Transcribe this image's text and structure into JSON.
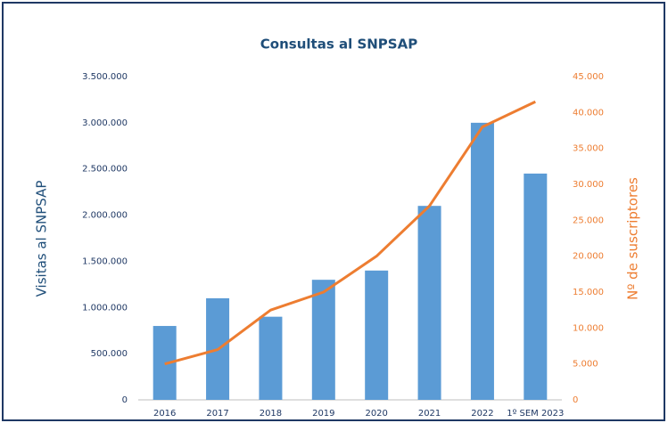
{
  "chart_data": {
    "type": "bar_line",
    "title": "Consultas al SNPSAP",
    "y_label": "Visitas al SNPSAP",
    "y2_label": "Nº de suscriptores",
    "categories": [
      "2016",
      "2017",
      "2018",
      "2019",
      "2020",
      "2021",
      "2022",
      "1º SEM 2023"
    ],
    "series": [
      {
        "name": "Visitas al SNPSAP",
        "type": "bar",
        "color": "#5b9bd5",
        "values": [
          800000,
          1100000,
          900000,
          1300000,
          1400000,
          2100000,
          3000000,
          2450000
        ]
      },
      {
        "name": "Nº de suscriptores",
        "type": "line",
        "axis": "y2",
        "color": "#ed7d31",
        "values": [
          5000,
          7000,
          12500,
          15000,
          20000,
          27000,
          38000,
          41500
        ]
      }
    ],
    "ylim": [
      0,
      3500000
    ],
    "yticks": [
      0,
      {
        "value": 500000,
        "label": "500.000"
      },
      {
        "value": 1000000,
        "label": "1.000.000"
      },
      {
        "value": 1500000,
        "label": "1.500.000"
      },
      {
        "value": 2000000,
        "label": "2.000.000"
      },
      {
        "value": 2500000,
        "label": "2.500.000"
      },
      {
        "value": 3000000,
        "label": "3.000.000"
      },
      {
        "value": 3500000,
        "label": "3.500.000"
      }
    ],
    "y2lim": [
      0,
      45000
    ],
    "y2ticks": [
      0,
      {
        "value": 5000,
        "label": "5.000"
      },
      {
        "value": 10000,
        "label": "10.000"
      },
      {
        "value": 15000,
        "label": "15.000"
      },
      {
        "value": 20000,
        "label": "20.000"
      },
      {
        "value": 25000,
        "label": "25.000"
      },
      {
        "value": 30000,
        "label": "30.000"
      },
      {
        "value": 35000,
        "label": "35.000"
      },
      {
        "value": 40000,
        "label": "40.000"
      },
      {
        "value": 45000,
        "label": "45.000"
      }
    ]
  }
}
